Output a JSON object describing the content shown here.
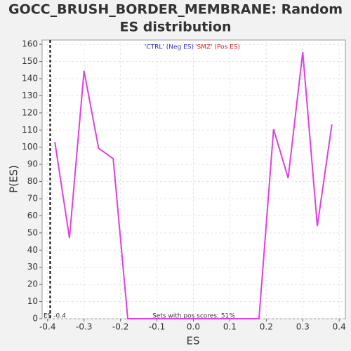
{
  "chart_data": {
    "type": "line",
    "title": "GOCC_BRUSH_BORDER_MEMBRANE: Random ES distribution",
    "title_lines": [
      "GOCC_BRUSH_BORDER_MEMBRANE: Random",
      "ES distribution"
    ],
    "xlabel": "ES",
    "ylabel": "P(ES)",
    "x": [
      -0.38,
      -0.34,
      -0.3,
      -0.26,
      -0.22,
      -0.18,
      -0.14,
      -0.1,
      -0.06,
      -0.02,
      0.02,
      0.06,
      0.1,
      0.14,
      0.18,
      0.22,
      0.26,
      0.3,
      0.34,
      0.38
    ],
    "values": [
      103,
      47,
      144.5,
      99.4,
      93.3,
      0,
      0,
      0,
      0,
      0,
      0,
      0,
      0,
      0,
      0,
      110.5,
      82,
      155.5,
      54,
      113.3
    ],
    "color": "#e040e0",
    "xlim": [
      -0.415,
      0.417
    ],
    "ylim": [
      0,
      162.5
    ],
    "xticks": [
      -0.4,
      -0.3,
      -0.2,
      -0.1,
      {
        "value": 0,
        "label": "0.0"
      },
      0.1,
      0.2,
      0.3,
      0.4
    ],
    "yticks": [
      0,
      10,
      20,
      30,
      40,
      50,
      60,
      70,
      80,
      90,
      100,
      110,
      120,
      130,
      140,
      150,
      160
    ],
    "grid": true,
    "legend": [
      {
        "name": "'CTRL' (Neg ES)",
        "color": "#3030c0"
      },
      {
        "name": "'SMZ' (Pos ES)",
        "color": "#d02020"
      }
    ],
    "actual_es": -0.393,
    "actual_es_label": "ES -0.4",
    "footnote": "Sets with pos scores: 51%"
  }
}
